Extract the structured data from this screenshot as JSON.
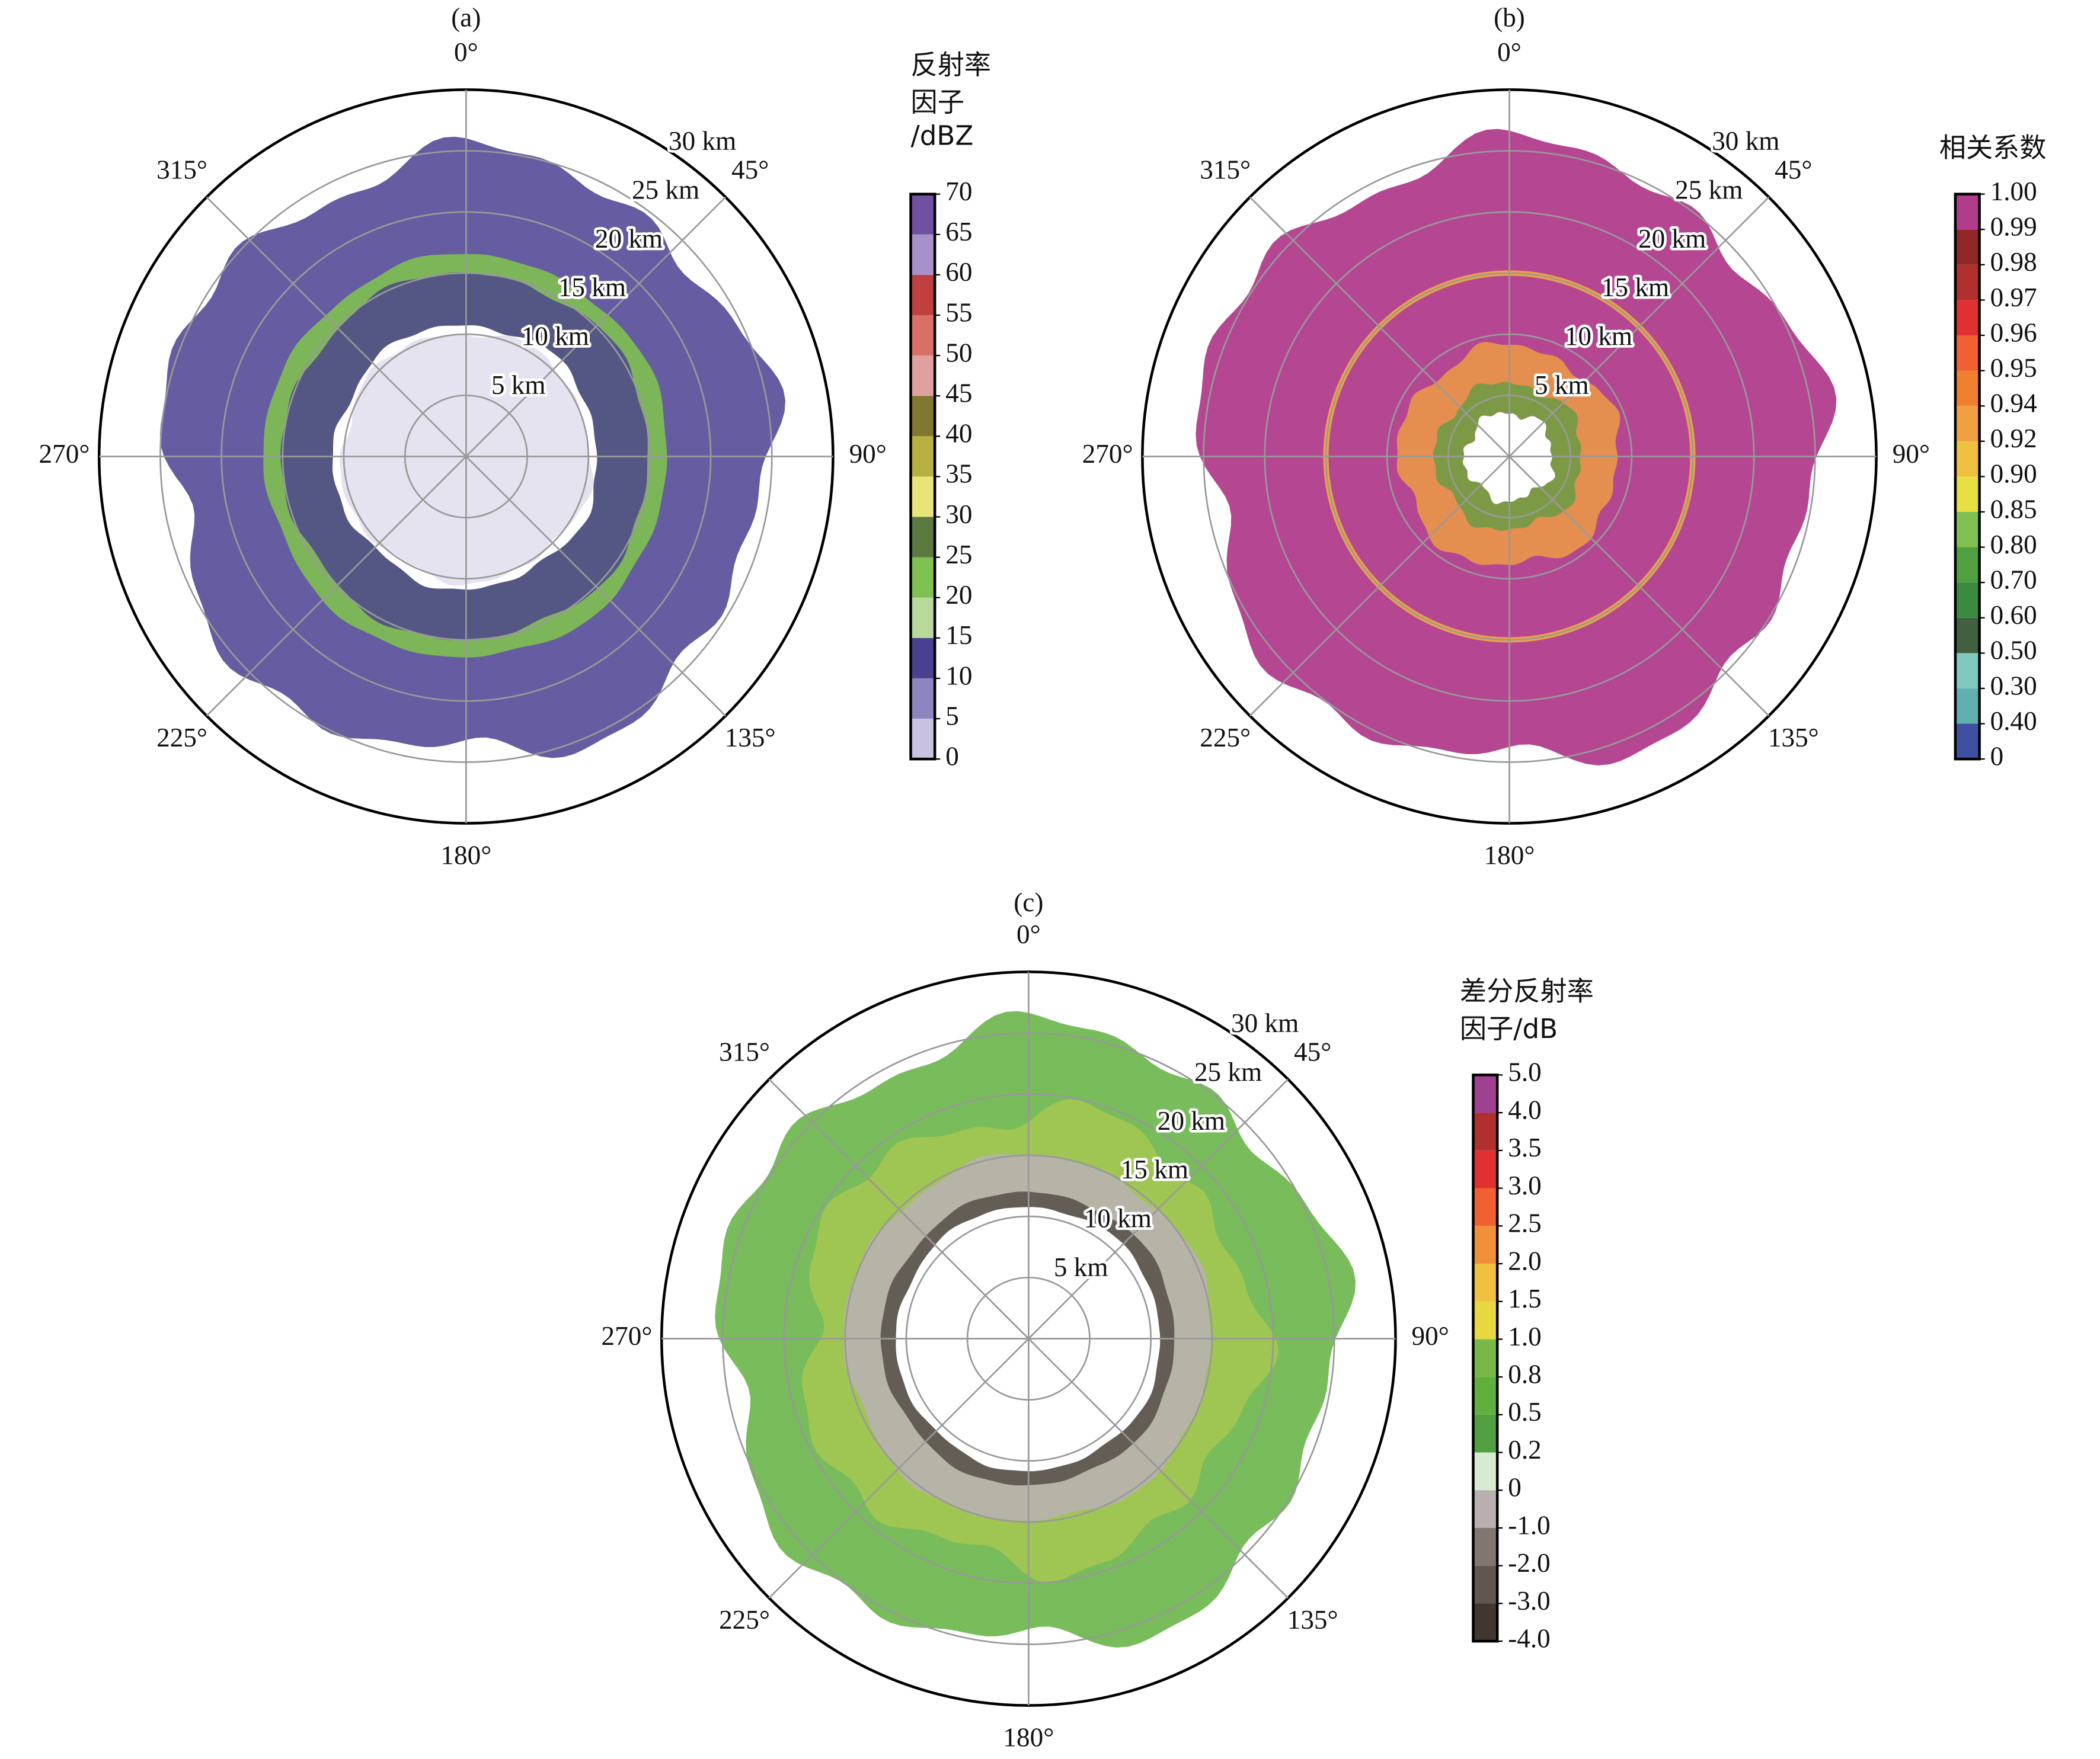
{
  "chart_data": [
    {
      "type": "polar",
      "title": "(a)",
      "angle_ticks": [
        {
          "value": 0,
          "label": "0°"
        },
        {
          "value": 45,
          "label": "45°"
        },
        {
          "value": 90,
          "label": "90°"
        },
        {
          "value": 135,
          "label": "135°"
        },
        {
          "value": 180,
          "label": "180°"
        },
        {
          "value": 225,
          "label": "225°"
        },
        {
          "value": 270,
          "label": "270°"
        },
        {
          "value": 315,
          "label": "315°"
        }
      ],
      "rlim": [
        0,
        30
      ],
      "rticks": [
        {
          "value": 5,
          "label": "5 km"
        },
        {
          "value": 10,
          "label": "10 km"
        },
        {
          "value": 15,
          "label": "15 km"
        },
        {
          "value": 20,
          "label": "20 km"
        },
        {
          "value": 25,
          "label": "25 km"
        },
        {
          "value": 30,
          "label": "30 km"
        }
      ],
      "colorbar": {
        "title": [
          "反射率",
          "因子",
          "/dBZ"
        ],
        "ticks": [
          0,
          5,
          10,
          15,
          20,
          25,
          30,
          35,
          40,
          45,
          50,
          55,
          60,
          65,
          70
        ],
        "colors": [
          "#c8c2e0",
          "#8d85c0",
          "#4a4090",
          "#b8d89c",
          "#80c050",
          "#5a7840",
          "#e8e47a",
          "#b8b040",
          "#807830",
          "#e0a0a0",
          "#d87068",
          "#c04040",
          "#a890c8",
          "#7050a0"
        ]
      }
    },
    {
      "type": "polar",
      "title": "(b)",
      "angle_ticks": [
        {
          "value": 0,
          "label": "0°"
        },
        {
          "value": 45,
          "label": "45°"
        },
        {
          "value": 90,
          "label": "90°"
        },
        {
          "value": 135,
          "label": "135°"
        },
        {
          "value": 180,
          "label": "180°"
        },
        {
          "value": 225,
          "label": "225°"
        },
        {
          "value": 270,
          "label": "270°"
        },
        {
          "value": 315,
          "label": "315°"
        }
      ],
      "rlim": [
        0,
        30
      ],
      "rticks": [
        {
          "value": 5,
          "label": "5 km"
        },
        {
          "value": 10,
          "label": "10 km"
        },
        {
          "value": 15,
          "label": "15 km"
        },
        {
          "value": 20,
          "label": "20 km"
        },
        {
          "value": 25,
          "label": "25 km"
        },
        {
          "value": 30,
          "label": "30 km"
        }
      ],
      "colorbar": {
        "title": [
          "相关系数"
        ],
        "ticks": [
          0,
          {
            "value": 0.4,
            "label": "0.40"
          },
          {
            "value": 0.3,
            "label": "0.30"
          },
          {
            "value": 0.5,
            "label": "0.50"
          },
          {
            "value": 0.6,
            "label": "0.60"
          },
          {
            "value": 0.7,
            "label": "0.70"
          },
          {
            "value": 0.8,
            "label": "0.80"
          },
          0.85,
          {
            "value": 0.9,
            "label": "0.90"
          },
          0.92,
          0.94,
          0.95,
          0.96,
          0.97,
          0.98,
          0.99,
          {
            "value": 1,
            "label": "1.00"
          }
        ],
        "colors": [
          "#4050a0",
          "#60b0b0",
          "#80c8c0",
          "#406040",
          "#3a8a40",
          "#50a040",
          "#80c050",
          "#e8e040",
          "#f0c040",
          "#f0a040",
          "#f08030",
          "#f06030",
          "#e03030",
          "#b03030",
          "#902828",
          "#b03c8c"
        ]
      }
    },
    {
      "type": "polar",
      "title": "(c)",
      "angle_ticks": [
        {
          "value": 0,
          "label": "0°"
        },
        {
          "value": 45,
          "label": "45°"
        },
        {
          "value": 90,
          "label": "90°"
        },
        {
          "value": 135,
          "label": "135°"
        },
        {
          "value": 180,
          "label": "180°"
        },
        {
          "value": 225,
          "label": "225°"
        },
        {
          "value": 270,
          "label": "270°"
        },
        {
          "value": 315,
          "label": "315°"
        }
      ],
      "rlim": [
        0,
        30
      ],
      "rticks": [
        {
          "value": 5,
          "label": "5 km"
        },
        {
          "value": 10,
          "label": "10 km"
        },
        {
          "value": 15,
          "label": "15 km"
        },
        {
          "value": 20,
          "label": "20 km"
        },
        {
          "value": 25,
          "label": "25 km"
        },
        {
          "value": 30,
          "label": "30 km"
        }
      ],
      "colorbar": {
        "title": [
          "差分反射率",
          "因子/dB"
        ],
        "ticks": [
          {
            "value": -4,
            "label": "-4.0"
          },
          {
            "value": -3,
            "label": "-3.0"
          },
          {
            "value": -2,
            "label": "-2.0"
          },
          {
            "value": -1,
            "label": "-1.0"
          },
          0,
          0.2,
          0.5,
          0.8,
          {
            "value": 1,
            "label": "1.0"
          },
          1.5,
          {
            "value": 2,
            "label": "2.0"
          },
          2.5,
          {
            "value": 3,
            "label": "3.0"
          },
          3.5,
          {
            "value": 4,
            "label": "4.0"
          },
          {
            "value": 5,
            "label": "5.0"
          }
        ],
        "colors": [
          "#403830",
          "#605850",
          "#807870",
          "#b8b0b0",
          "#d8ead0",
          "#50a040",
          "#60b040",
          "#78b848",
          "#e8d840",
          "#f0c040",
          "#f09038",
          "#f06030",
          "#e03030",
          "#b03030",
          "#a04090"
        ]
      }
    }
  ]
}
